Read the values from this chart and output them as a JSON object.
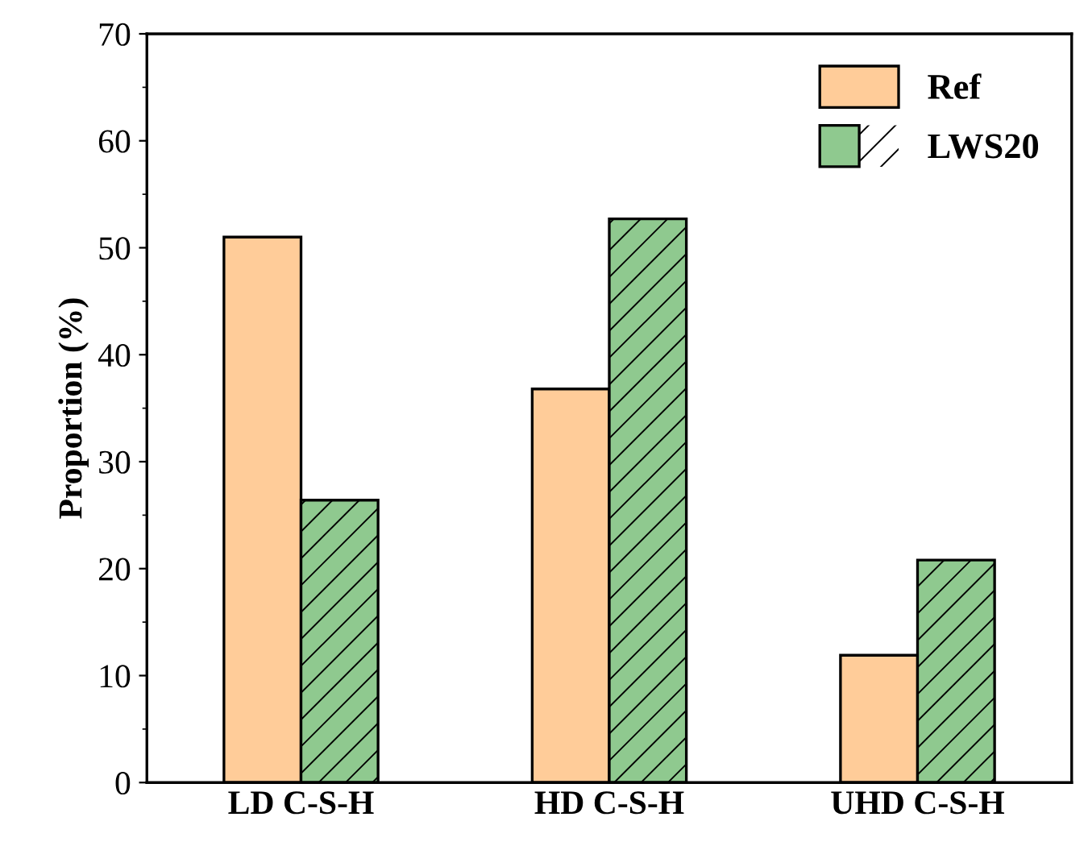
{
  "chart_data": {
    "type": "bar",
    "ylabel": "Proportion (%)",
    "categories": [
      "LD C-S-H",
      "HD C-S-H",
      "UHD C-S-H"
    ],
    "series": [
      {
        "name": "Ref",
        "color": "#ffcc99",
        "values": [
          51.0,
          36.8,
          11.9
        ]
      },
      {
        "name": "LWS20",
        "color": "#8fc98f",
        "values": [
          26.4,
          52.7,
          20.8
        ]
      }
    ],
    "ylim": [
      0,
      70
    ],
    "yticks": [
      0,
      10,
      20,
      30,
      40,
      50,
      60,
      70
    ],
    "grid": false,
    "legend": "top right"
  }
}
